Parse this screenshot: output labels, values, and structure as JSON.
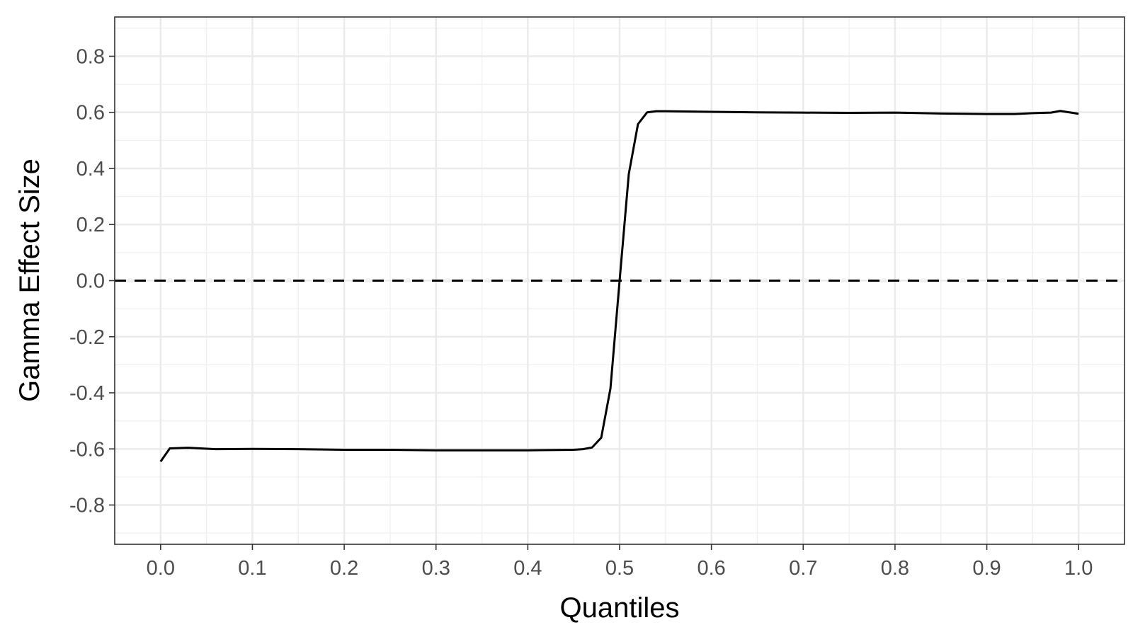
{
  "chart_data": {
    "type": "line",
    "title": "",
    "xlabel": "Quantiles",
    "ylabel": "Gamma Effect Size",
    "xlim": [
      -0.05,
      1.05
    ],
    "ylim": [
      -0.94,
      0.94
    ],
    "x_ticks": [
      0.0,
      0.1,
      0.2,
      0.3,
      0.4,
      0.5,
      0.6,
      0.7,
      0.8,
      0.9,
      1.0
    ],
    "x_tick_labels": [
      "0.0",
      "0.1",
      "0.2",
      "0.3",
      "0.4",
      "0.5",
      "0.6",
      "0.7",
      "0.8",
      "0.9",
      "1.0"
    ],
    "y_ticks": [
      -0.8,
      -0.6,
      -0.4,
      -0.2,
      0.0,
      0.2,
      0.4,
      0.6,
      0.8
    ],
    "y_tick_labels": [
      "-0.8",
      "-0.6",
      "-0.4",
      "-0.2",
      "0.0",
      "0.2",
      "0.4",
      "0.6",
      "0.8"
    ],
    "grid": true,
    "theme": "bw",
    "reference_line": {
      "y": 0.0,
      "style": "dashed",
      "color": "#000000"
    },
    "series": [
      {
        "color": "#000000",
        "x": [
          0.0,
          0.01,
          0.03,
          0.06,
          0.1,
          0.15,
          0.2,
          0.25,
          0.3,
          0.35,
          0.4,
          0.45,
          0.46,
          0.47,
          0.48,
          0.49,
          0.5,
          0.51,
          0.52,
          0.53,
          0.54,
          0.55,
          0.6,
          0.65,
          0.7,
          0.75,
          0.8,
          0.85,
          0.9,
          0.93,
          0.95,
          0.97,
          0.98,
          1.0
        ],
        "y": [
          -0.645,
          -0.598,
          -0.596,
          -0.601,
          -0.6,
          -0.601,
          -0.603,
          -0.603,
          -0.605,
          -0.605,
          -0.605,
          -0.603,
          -0.601,
          -0.595,
          -0.56,
          -0.385,
          0.0,
          0.38,
          0.558,
          0.6,
          0.604,
          0.604,
          0.602,
          0.6,
          0.599,
          0.598,
          0.599,
          0.596,
          0.594,
          0.594,
          0.597,
          0.599,
          0.605,
          0.595
        ]
      }
    ]
  }
}
